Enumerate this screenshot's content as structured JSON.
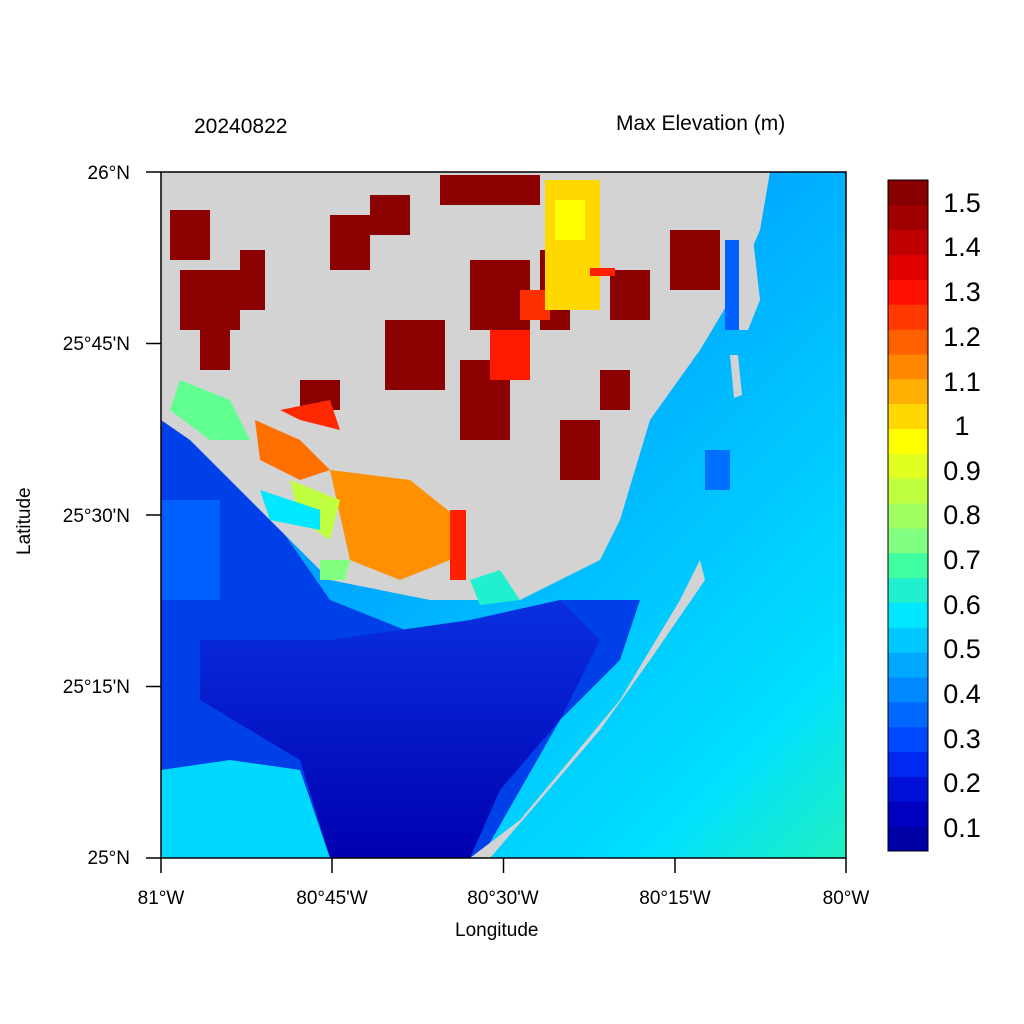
{
  "header": {
    "date": "20240822",
    "variable": "Max Elevation (m)"
  },
  "axes": {
    "xlabel": "Longitude",
    "ylabel": "Latitude",
    "xticks": [
      "81°W",
      "80°45'W",
      "80°30'W",
      "80°15'W",
      "80°W"
    ],
    "yticks": [
      "26°N",
      "25°45'N",
      "25°30'N",
      "25°15'N",
      "25°N"
    ]
  },
  "colorbar": {
    "labels": [
      "1.5",
      "1.4",
      "1.3",
      "1.2",
      "1.1",
      "1",
      "0.9",
      "0.8",
      "0.7",
      "0.6",
      "0.5",
      "0.4",
      "0.3",
      "0.2",
      "0.1"
    ],
    "colors": [
      "#0000a8",
      "#0000c0",
      "#0010d8",
      "#0028f0",
      "#0048ff",
      "#0068ff",
      "#0088ff",
      "#00a8ff",
      "#00c8ff",
      "#00e8ff",
      "#20f0d0",
      "#40ffa0",
      "#80ff80",
      "#a0ff60",
      "#c0ff40",
      "#e0ff20",
      "#ffff00",
      "#ffd800",
      "#ffb000",
      "#ff8800",
      "#ff6000",
      "#ff3800",
      "#ff1000",
      "#e00000",
      "#c00000",
      "#a00000",
      "#880000"
    ]
  },
  "map": {
    "land_color": "#d3d3d3",
    "lon_range": [
      -81,
      -80
    ],
    "lat_range": [
      25,
      26
    ]
  }
}
